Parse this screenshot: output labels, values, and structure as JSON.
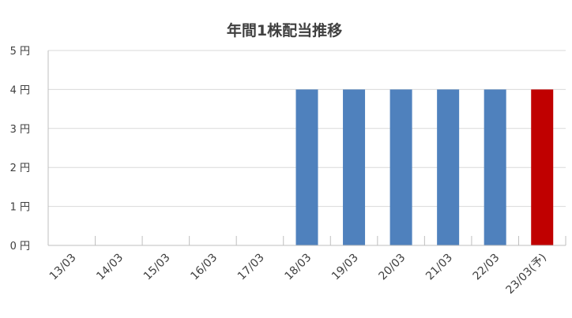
{
  "chart_data": {
    "type": "bar",
    "title": "年間1株配当推移",
    "xlabel": "",
    "ylabel": "",
    "categories": [
      "13/03",
      "14/03",
      "15/03",
      "16/03",
      "17/03",
      "18/03",
      "19/03",
      "20/03",
      "21/03",
      "22/03",
      "23/03(予)"
    ],
    "values": [
      0,
      0,
      0,
      0,
      0,
      4,
      4,
      4,
      4,
      4,
      4
    ],
    "ylim": [
      0,
      5
    ],
    "yticks": [
      0,
      1,
      2,
      3,
      4,
      5
    ],
    "ytick_labels": [
      "0 円",
      "1 円",
      "2 円",
      "3 円",
      "4 円",
      "5 円"
    ],
    "grid": true,
    "legend": "none",
    "bar_colors": [
      "#4f81bd",
      "#4f81bd",
      "#4f81bd",
      "#4f81bd",
      "#4f81bd",
      "#4f81bd",
      "#4f81bd",
      "#4f81bd",
      "#4f81bd",
      "#4f81bd",
      "#c00000"
    ]
  }
}
